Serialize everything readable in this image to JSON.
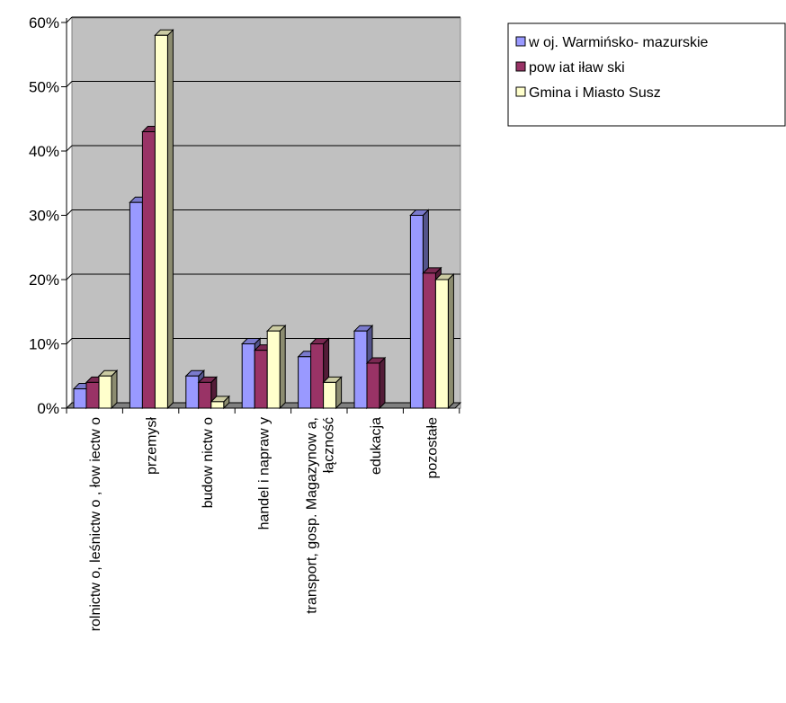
{
  "chart_data": {
    "type": "bar",
    "style": "3d-clustered-column",
    "categories": [
      [
        "rolnictw o, leśnictw o , łow iectw o"
      ],
      [
        "przemysł"
      ],
      [
        "budow nictw o"
      ],
      [
        "handel i napraw y"
      ],
      [
        "transport, gosp. Magazynow a,",
        "łączność"
      ],
      [
        "edukacja"
      ],
      [
        "pozostałe"
      ]
    ],
    "series": [
      {
        "name": "w oj. Warmińsko- mazurskie",
        "color": "#9999ff",
        "values": [
          3,
          32,
          5,
          10,
          8,
          12,
          30
        ]
      },
      {
        "name": "pow iat iław ski",
        "color": "#993366",
        "values": [
          4,
          43,
          4,
          9,
          10,
          7,
          21
        ]
      },
      {
        "name": "Gmina  i Miasto Susz",
        "color": "#ffffcc",
        "values": [
          5,
          58,
          1,
          12,
          4,
          0,
          20
        ]
      }
    ],
    "y_ticks": [
      "0%",
      "10%",
      "20%",
      "30%",
      "40%",
      "50%",
      "60%"
    ],
    "ylim": [
      0,
      60
    ],
    "y_unit": "%",
    "grid": true,
    "plot_background": "#c0c0c0",
    "legend_position": "top-right"
  }
}
